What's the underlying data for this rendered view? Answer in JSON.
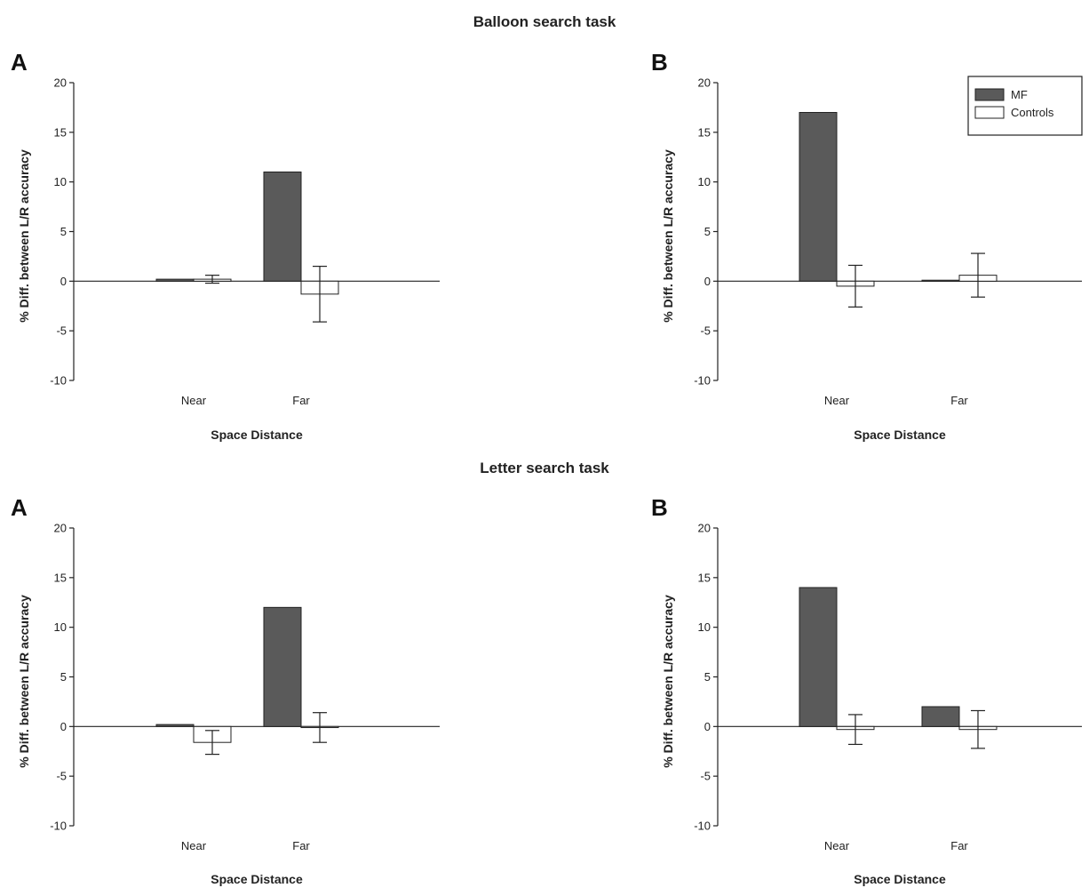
{
  "sections": [
    {
      "title": "Balloon search task"
    },
    {
      "title": "Letter search task"
    }
  ],
  "legend": {
    "position": "top-right of panel B (balloon)",
    "entries": [
      {
        "label": "MF",
        "color": "#5a5a5a"
      },
      {
        "label": "Controls",
        "color": "#ffffff"
      }
    ]
  },
  "chart_data": [
    {
      "type": "bar",
      "section": "Balloon search task",
      "panel": "A",
      "title": "",
      "categories": [
        "Near",
        "Far"
      ],
      "xlabel": "Space Distance",
      "ylabel": "% Diff. between L/R accuracy",
      "ylim": [
        -10,
        20
      ],
      "yticks": [
        -10,
        -5,
        0,
        5,
        10,
        15,
        20
      ],
      "grid": false,
      "series": [
        {
          "name": "MF",
          "values": [
            0.2,
            11
          ],
          "errors": [
            null,
            null
          ]
        },
        {
          "name": "Controls",
          "values": [
            0.2,
            -1.3
          ],
          "errors": [
            0.4,
            2.8
          ]
        }
      ]
    },
    {
      "type": "bar",
      "section": "Balloon search task",
      "panel": "B",
      "title": "",
      "categories": [
        "Near",
        "Far"
      ],
      "xlabel": "Space Distance",
      "ylabel": "% Diff. between L/R accuracy",
      "ylim": [
        -10,
        20
      ],
      "yticks": [
        -10,
        -5,
        0,
        5,
        10,
        15,
        20
      ],
      "grid": false,
      "series": [
        {
          "name": "MF",
          "values": [
            17,
            0.1
          ],
          "errors": [
            null,
            null
          ]
        },
        {
          "name": "Controls",
          "values": [
            -0.5,
            0.6
          ],
          "errors": [
            2.1,
            2.2
          ]
        }
      ]
    },
    {
      "type": "bar",
      "section": "Letter search task",
      "panel": "A",
      "title": "",
      "categories": [
        "Near",
        "Far"
      ],
      "xlabel": "Space Distance",
      "ylabel": "% Diff. between L/R accuracy",
      "ylim": [
        -10,
        20
      ],
      "yticks": [
        -10,
        -5,
        0,
        5,
        10,
        15,
        20
      ],
      "grid": false,
      "series": [
        {
          "name": "MF",
          "values": [
            0.2,
            12
          ],
          "errors": [
            null,
            null
          ]
        },
        {
          "name": "Controls",
          "values": [
            -1.6,
            -0.1
          ],
          "errors": [
            1.2,
            1.5
          ]
        }
      ]
    },
    {
      "type": "bar",
      "section": "Letter search task",
      "panel": "B",
      "title": "",
      "categories": [
        "Near",
        "Far"
      ],
      "xlabel": "Space Distance",
      "ylabel": "% Diff. between L/R accuracy",
      "ylim": [
        -10,
        20
      ],
      "yticks": [
        -10,
        -5,
        0,
        5,
        10,
        15,
        20
      ],
      "grid": false,
      "series": [
        {
          "name": "MF",
          "values": [
            14,
            2
          ],
          "errors": [
            null,
            null
          ]
        },
        {
          "name": "Controls",
          "values": [
            -0.3,
            -0.3
          ],
          "errors": [
            1.5,
            1.9
          ]
        }
      ]
    }
  ]
}
